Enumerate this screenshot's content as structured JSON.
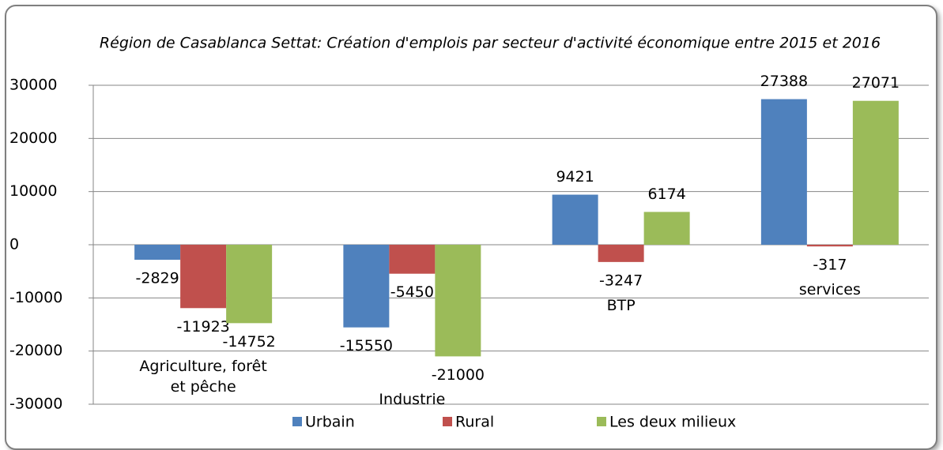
{
  "chart_data": {
    "type": "bar",
    "title": "Région de Casablanca Settat: Création d'emplois par secteur d'activité économique entre 2015 et 2016",
    "categories": [
      "Agriculture, forêt et pêche",
      "Industrie",
      "BTP",
      "services"
    ],
    "series": [
      {
        "name": "Urbain",
        "color": "#4f81bd",
        "values": [
          -2829,
          -15550,
          9421,
          27388
        ]
      },
      {
        "name": "Rural",
        "color": "#c0504d",
        "values": [
          -11923,
          -5450,
          -3247,
          -317
        ]
      },
      {
        "name": "Les deux milieux",
        "color": "#9bbb59",
        "values": [
          -14752,
          -21000,
          6174,
          27071
        ]
      }
    ],
    "ylim": [
      -30000,
      30000
    ],
    "yticks": [
      -30000,
      -20000,
      -10000,
      0,
      10000,
      20000,
      30000
    ],
    "grid": true,
    "legend": "bottom"
  }
}
